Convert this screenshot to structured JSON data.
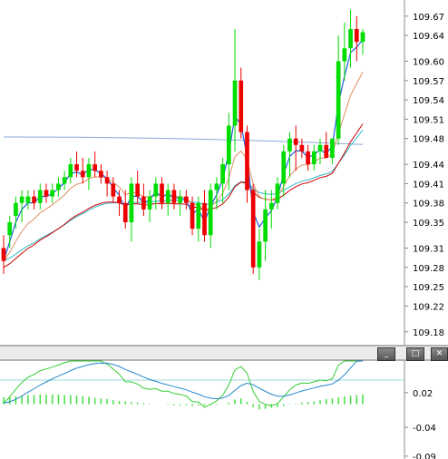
{
  "chart_data": {
    "type": "candlestick",
    "price_ticks": [
      "109.67",
      "109.64",
      "109.60",
      "109.57",
      "109.54",
      "109.51",
      "109.48",
      "109.44",
      "109.41",
      "109.38",
      "109.35",
      "109.31",
      "109.28",
      "109.25",
      "109.22",
      "109.18"
    ],
    "price_ylim": [
      109.16,
      109.695
    ],
    "candles": [
      [
        109.31,
        109.33,
        109.27,
        109.29
      ],
      [
        109.33,
        109.36,
        109.31,
        109.35
      ],
      [
        109.36,
        109.39,
        109.34,
        109.38
      ],
      [
        109.38,
        109.4,
        109.35,
        109.39
      ],
      [
        109.38,
        109.4,
        109.37,
        109.39
      ],
      [
        109.39,
        109.4,
        109.37,
        109.38
      ],
      [
        109.38,
        109.41,
        109.37,
        109.4
      ],
      [
        109.4,
        109.41,
        109.38,
        109.39
      ],
      [
        109.39,
        109.41,
        109.38,
        109.4
      ],
      [
        109.4,
        109.42,
        109.39,
        109.41
      ],
      [
        109.41,
        109.43,
        109.4,
        109.42
      ],
      [
        109.42,
        109.45,
        109.41,
        109.44
      ],
      [
        109.44,
        109.46,
        109.42,
        109.43
      ],
      [
        109.43,
        109.45,
        109.41,
        109.42
      ],
      [
        109.42,
        109.45,
        109.4,
        109.44
      ],
      [
        109.44,
        109.46,
        109.42,
        109.43
      ],
      [
        109.43,
        109.44,
        109.41,
        109.42
      ],
      [
        109.42,
        109.43,
        109.39,
        109.41
      ],
      [
        109.41,
        109.42,
        109.38,
        109.39
      ],
      [
        109.39,
        109.4,
        109.36,
        109.38
      ],
      [
        109.38,
        109.4,
        109.34,
        109.35
      ],
      [
        109.35,
        109.42,
        109.32,
        109.41
      ],
      [
        109.41,
        109.43,
        109.38,
        109.39
      ],
      [
        109.39,
        109.41,
        109.36,
        109.37
      ],
      [
        109.37,
        109.4,
        109.35,
        109.39
      ],
      [
        109.39,
        109.42,
        109.37,
        109.41
      ],
      [
        109.41,
        109.42,
        109.37,
        109.38
      ],
      [
        109.38,
        109.41,
        109.36,
        109.4
      ],
      [
        109.4,
        109.41,
        109.37,
        109.38
      ],
      [
        109.38,
        109.4,
        109.36,
        109.39
      ],
      [
        109.39,
        109.4,
        109.37,
        109.38
      ],
      [
        109.38,
        109.39,
        109.33,
        109.34
      ],
      [
        109.34,
        109.39,
        109.32,
        109.38
      ],
      [
        109.38,
        109.4,
        109.32,
        109.33
      ],
      [
        109.33,
        109.41,
        109.31,
        109.4
      ],
      [
        109.4,
        109.42,
        109.37,
        109.41
      ],
      [
        109.41,
        109.45,
        109.38,
        109.44
      ],
      [
        109.44,
        109.52,
        109.4,
        109.5
      ],
      [
        109.5,
        109.65,
        109.46,
        109.57
      ],
      [
        109.57,
        109.59,
        109.48,
        109.49
      ],
      [
        109.49,
        109.5,
        109.38,
        109.4
      ],
      [
        109.4,
        109.41,
        109.27,
        109.28
      ],
      [
        109.28,
        109.34,
        109.26,
        109.32
      ],
      [
        109.32,
        109.4,
        109.29,
        109.37
      ],
      [
        109.37,
        109.4,
        109.34,
        109.38
      ],
      [
        109.38,
        109.42,
        109.37,
        109.41
      ],
      [
        109.41,
        109.47,
        109.39,
        109.46
      ],
      [
        109.46,
        109.49,
        109.42,
        109.48
      ],
      [
        109.48,
        109.5,
        109.43,
        109.47
      ],
      [
        109.47,
        109.48,
        109.45,
        109.46
      ],
      [
        109.46,
        109.47,
        109.43,
        109.44
      ],
      [
        109.44,
        109.47,
        109.43,
        109.46
      ],
      [
        109.46,
        109.48,
        109.44,
        109.47
      ],
      [
        109.47,
        109.49,
        109.45,
        109.45
      ],
      [
        109.45,
        109.48,
        109.44,
        109.48
      ],
      [
        109.48,
        109.64,
        109.47,
        109.6
      ],
      [
        109.6,
        109.66,
        109.57,
        109.62
      ],
      [
        109.62,
        109.68,
        109.59,
        109.65
      ],
      [
        109.65,
        109.67,
        109.6,
        109.63
      ],
      [
        109.63,
        109.65,
        109.61,
        109.645
      ]
    ],
    "indicator_ticks": [
      "0.02",
      "-0.04",
      "-0.09"
    ],
    "indicator_ylim": [
      -0.095,
      0.075
    ],
    "histogram": [
      0.012,
      0.013,
      0.014,
      0.015,
      0.016,
      0.016,
      0.017,
      0.017,
      0.017,
      0.017,
      0.016,
      0.016,
      0.015,
      0.014,
      0.013,
      0.011,
      0.01,
      0.009,
      0.007,
      0.006,
      0.005,
      0.004,
      0.003,
      0.002,
      0.001,
      0.0,
      0.0,
      -0.001,
      -0.002,
      -0.002,
      -0.002,
      -0.003,
      -0.002,
      -0.002,
      -0.002,
      -0.001,
      0.0,
      0.003,
      0.008,
      0.01,
      0.004,
      -0.005,
      -0.009,
      -0.008,
      -0.006,
      -0.005,
      -0.003,
      -0.001,
      0.001,
      0.003,
      0.004,
      0.005,
      0.007,
      0.009,
      0.01,
      0.012,
      0.014,
      0.015,
      0.016,
      0.017
    ],
    "price_colors": {
      "up": "#00dd00",
      "down": "#ee0000"
    },
    "line_colors": {
      "ma_fast": "#1e5fe0",
      "ma_mid": "#e09060",
      "ma_slow": "#cc0000",
      "ma_long": "#2eb8c8",
      "ma_xlong": "#8aaad8",
      "macd": "#33cc33",
      "signal": "#2288cc",
      "hist": "#44dd44"
    },
    "window_buttons": {
      "minimize": "_",
      "maximize": "□",
      "close": "✕"
    }
  }
}
